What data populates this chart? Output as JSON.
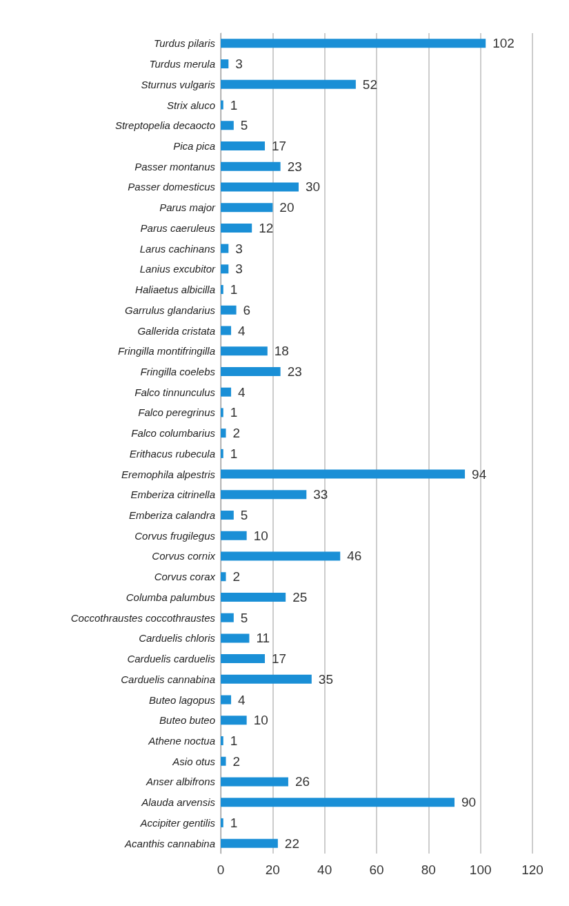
{
  "chart_data": {
    "type": "bar",
    "orientation": "horizontal",
    "categories": [
      "Turdus pilaris",
      "Turdus merula",
      "Sturnus vulgaris",
      "Strix aluco",
      "Streptopelia decaocto",
      "Pica pica",
      "Passer montanus",
      "Passer domesticus",
      "Parus major",
      "Parus caeruleus",
      "Larus cachinans",
      "Lanius excubitor",
      "Haliaetus albicilla",
      "Garrulus glandarius",
      "Gallerida cristata",
      "Fringilla montifringilla",
      "Fringilla coelebs",
      "Falco tinnunculus",
      "Falco peregrinus",
      "Falco columbarius",
      "Erithacus rubecula",
      "Eremophila alpestris",
      "Emberiza citrinella",
      "Emberiza calandra",
      "Corvus frugilegus",
      "Corvus cornix",
      "Corvus corax",
      "Columba palumbus",
      "Coccothraustes coccothraustes",
      "Carduelis chloris",
      "Carduelis carduelis",
      "Carduelis cannabina",
      "Buteo lagopus",
      "Buteo buteo",
      "Athene noctua",
      "Asio otus",
      "Anser albifrons",
      "Alauda arvensis",
      "Accipiter gentilis",
      "Acanthis cannabina"
    ],
    "values": [
      102,
      3,
      52,
      1,
      5,
      17,
      23,
      30,
      20,
      12,
      3,
      3,
      1,
      6,
      4,
      18,
      23,
      4,
      1,
      2,
      1,
      94,
      33,
      5,
      10,
      46,
      2,
      25,
      5,
      11,
      17,
      35,
      4,
      10,
      1,
      2,
      26,
      90,
      1,
      22
    ],
    "color": "#1a8fd6",
    "xlim": [
      0,
      120
    ],
    "xticks": [
      0,
      20,
      40,
      60,
      80,
      100,
      120
    ],
    "grid": "x",
    "data_labels": true
  }
}
